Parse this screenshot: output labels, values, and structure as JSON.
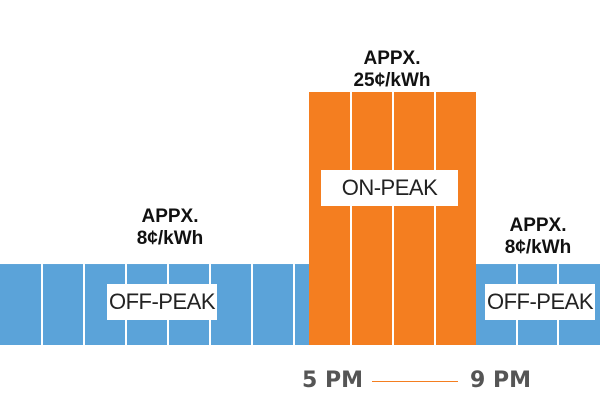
{
  "chart_data": {
    "type": "bar",
    "periods": [
      {
        "name": "OFF-PEAK",
        "price_label_1": "APPX.",
        "price_label_2": "8¢/kWh",
        "rate": 8,
        "color": "#5BA3D9"
      },
      {
        "name": "ON-PEAK",
        "price_label_1": "APPX.",
        "price_label_2": "25¢/kWh",
        "rate": 25,
        "color": "#F47E20"
      },
      {
        "name": "OFF-PEAK",
        "price_label_1": "APPX.",
        "price_label_2": "8¢/kWh",
        "rate": 8,
        "color": "#5BA3D9"
      }
    ],
    "time_labels": [
      "5 PM",
      "9 PM"
    ],
    "connector_color": "#F47E20"
  }
}
